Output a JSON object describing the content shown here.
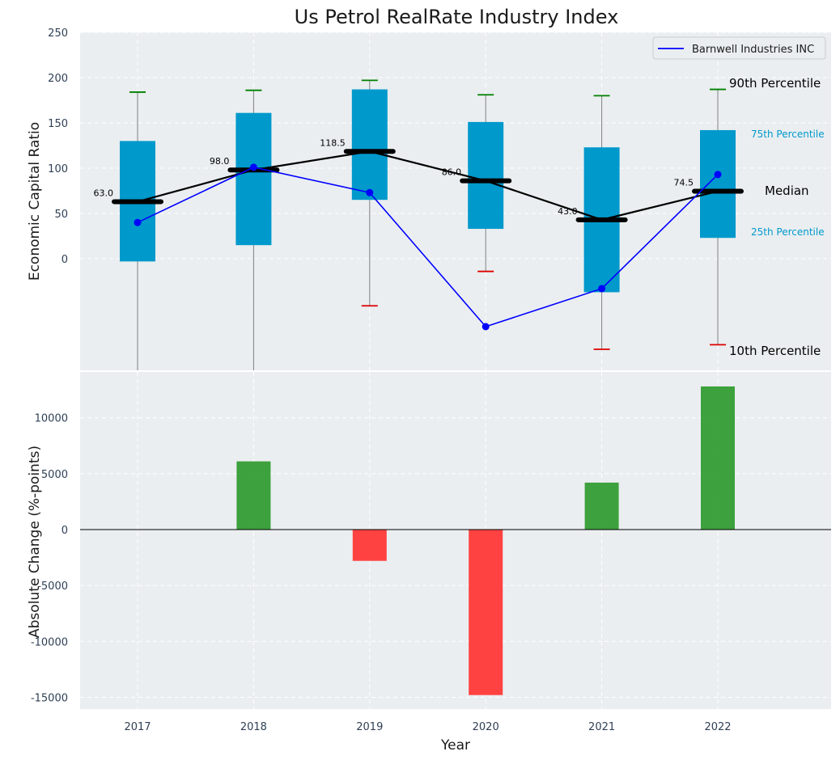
{
  "chart_data": [
    {
      "type": "box",
      "title": "Us Petrol RealRate Industry Index",
      "ylabel": "Economic Capital Ratio",
      "ylim": [
        -125,
        250
      ],
      "yticks": [
        0,
        50,
        100,
        150,
        200,
        250
      ],
      "categories": [
        "2017",
        "2018",
        "2019",
        "2020",
        "2021",
        "2022"
      ],
      "boxes": [
        {
          "p10": -125,
          "p25": -3,
          "median": 63.0,
          "p75": 130,
          "p90": 184,
          "median_label": "63.0"
        },
        {
          "p10": -125,
          "p25": 15,
          "median": 98.0,
          "p75": 161,
          "p90": 186,
          "median_label": "98.0"
        },
        {
          "p10": -52,
          "p25": 65,
          "median": 118.5,
          "p75": 187,
          "p90": 197,
          "median_label": "118.5"
        },
        {
          "p10": -14,
          "p25": 33,
          "median": 86.0,
          "p75": 151,
          "p90": 181,
          "median_label": "86.0"
        },
        {
          "p10": -100,
          "p25": -37,
          "median": 43.0,
          "p75": 123,
          "p90": 180,
          "median_label": "43.0"
        },
        {
          "p10": -95,
          "p25": 23,
          "median": 74.5,
          "p75": 142,
          "p90": 187,
          "median_label": "74.5"
        }
      ],
      "series": [
        {
          "name": "Barnwell Industries INC",
          "color": "#0000ff",
          "values": [
            40,
            101,
            73,
            -75,
            -33,
            93
          ]
        }
      ],
      "legend": {
        "label": "Barnwell Industries INC",
        "position": "top-right"
      },
      "annotations": {
        "p90": "90th Percentile",
        "p75": "75th Percentile",
        "median": "Median",
        "p25": "25th Percentile",
        "p10": "10th Percentile"
      },
      "colors": {
        "box": "#0099cc",
        "median": "#000000",
        "whisker_top": "#008000",
        "whisker_bottom": "#dd0000",
        "whisker": "#808080",
        "p75_text": "#0099cc"
      }
    },
    {
      "type": "bar",
      "xlabel": "Year",
      "ylabel": "Absolute Change (%-points)",
      "ylim": [
        -16000,
        14000
      ],
      "yticks": [
        -15000,
        -10000,
        -5000,
        0,
        5000,
        10000
      ],
      "categories": [
        "2017",
        "2018",
        "2019",
        "2020",
        "2021",
        "2022"
      ],
      "values": [
        0,
        6100,
        -2800,
        -14800,
        4200,
        12800
      ],
      "colors": {
        "positive": "#2e9a2e",
        "negative": "#ff3333"
      }
    }
  ]
}
